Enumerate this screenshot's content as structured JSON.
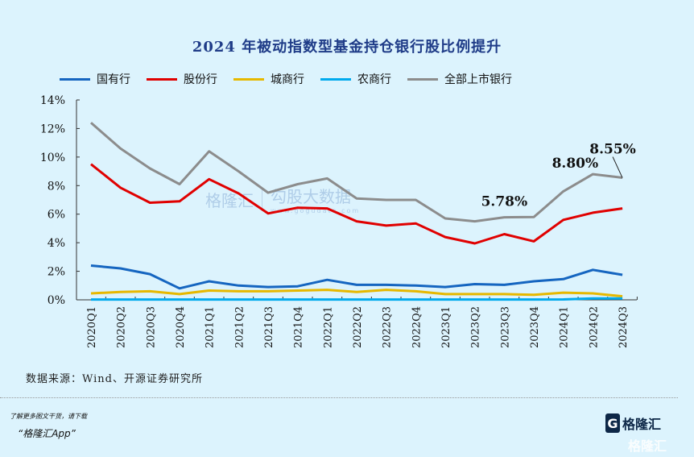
{
  "chart_data": {
    "type": "line",
    "title": "2024 年被动指数型基金持仓银行股比例提升",
    "categories": [
      "2020Q1",
      "2020Q2",
      "2020Q3",
      "2020Q4",
      "2021Q1",
      "2021Q2",
      "2021Q3",
      "2021Q4",
      "2022Q1",
      "2022Q2",
      "2022Q3",
      "2022Q4",
      "2023Q1",
      "2023Q2",
      "2023Q3",
      "2023Q4",
      "2024Q1",
      "2024Q2",
      "2024Q3"
    ],
    "ylim": [
      0,
      14
    ],
    "yticks": [
      "0%",
      "2%",
      "4%",
      "6%",
      "8%",
      "10%",
      "12%",
      "14%"
    ],
    "grid": false,
    "legend": "top",
    "series": [
      {
        "name": "国有行",
        "color": "#1565c0",
        "values": [
          2.4,
          2.2,
          1.8,
          0.8,
          1.3,
          1.0,
          0.9,
          0.95,
          1.4,
          1.05,
          1.05,
          1.0,
          0.9,
          1.1,
          1.05,
          1.3,
          1.45,
          2.1,
          1.75
        ]
      },
      {
        "name": "股份行",
        "color": "#e00000",
        "values": [
          9.5,
          7.85,
          6.8,
          6.9,
          8.45,
          7.45,
          6.05,
          6.45,
          6.4,
          5.5,
          5.2,
          5.35,
          4.4,
          3.95,
          4.6,
          4.1,
          5.6,
          6.1,
          6.4
        ]
      },
      {
        "name": "城商行",
        "color": "#e6b800",
        "values": [
          0.45,
          0.55,
          0.6,
          0.4,
          0.65,
          0.6,
          0.6,
          0.65,
          0.7,
          0.55,
          0.7,
          0.6,
          0.4,
          0.4,
          0.4,
          0.35,
          0.5,
          0.45,
          0.25
        ]
      },
      {
        "name": "农商行",
        "color": "#00aaee",
        "values": [
          0.02,
          0.02,
          0.02,
          0.02,
          0.02,
          0.02,
          0.02,
          0.02,
          0.02,
          0.02,
          0.02,
          0.02,
          0.02,
          0.02,
          0.02,
          0.02,
          0.03,
          0.1,
          0.1
        ]
      },
      {
        "name": "全部上市银行",
        "color": "#8c8c8c",
        "values": [
          12.4,
          10.6,
          9.2,
          8.1,
          10.4,
          9.0,
          7.5,
          8.1,
          8.5,
          7.1,
          7.0,
          7.0,
          5.7,
          5.5,
          5.78,
          5.8,
          7.6,
          8.8,
          8.55
        ]
      }
    ],
    "annotations": [
      {
        "text": "5.78%",
        "category": "2023Q3"
      },
      {
        "text": "8.80%",
        "category": "2024Q2"
      },
      {
        "text": "8.55%",
        "category": "2024Q3"
      }
    ]
  },
  "source": "数据来源：Wind、开源证券研究所",
  "watermark": {
    "brand": "格隆汇",
    "data_brand": "勾股大数据",
    "data_url": "www.gogudata.com"
  },
  "promo": {
    "line1": "了解更多图文干货，请下载",
    "line2": "“格隆汇App”"
  },
  "logo": {
    "text": "格隆汇"
  }
}
